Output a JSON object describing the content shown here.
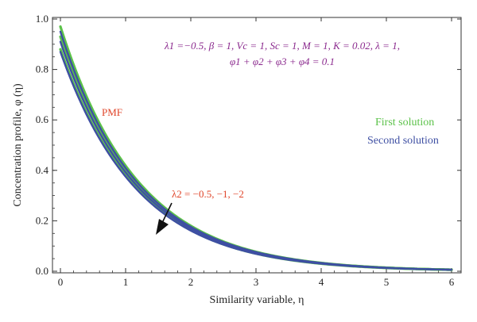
{
  "chart_data": {
    "type": "line",
    "xlabel": "Similarity variable, η",
    "ylabel": "Concentration profile, φ (η)",
    "xlim": [
      0,
      6
    ],
    "ylim": [
      0,
      1.0
    ],
    "x_ticks": [
      "0",
      "1",
      "2",
      "3",
      "4",
      "5",
      "6"
    ],
    "y_ticks": [
      "0.0",
      "0.2",
      "0.4",
      "0.6",
      "0.8",
      "1.0"
    ],
    "x_tick_values": [
      0,
      1,
      2,
      3,
      4,
      5,
      6
    ],
    "y_tick_values": [
      0,
      0.2,
      0.4,
      0.6,
      0.8,
      1.0
    ],
    "grid": false,
    "legend_placement": "right",
    "legend": [
      {
        "label": "First solution",
        "color": "#5cc24a"
      },
      {
        "label": "Second solution",
        "color": "#3e4fa3"
      }
    ],
    "annotations": {
      "params_line1": "λ1 =−0.5, β = 1, Vc = 1, Sc = 1, M = 1, K = 0.02, λ = 1,",
      "params_line2": "φ1 + φ2 + φ3 + φ4 = 0.1",
      "pmf": "PMF",
      "lambda2": "λ2 = −0.5, −1, −2"
    },
    "series": [
      {
        "group": "First solution",
        "color": "#5cc24a",
        "x": [
          0,
          1,
          2,
          3,
          4,
          5,
          6
        ],
        "y": [
          0.97,
          0.418,
          0.18,
          0.077,
          0.033,
          0.014,
          0.006
        ]
      },
      {
        "group": "First solution",
        "color": "#5cc24a",
        "x": [
          0,
          1,
          2,
          3,
          4,
          5,
          6
        ],
        "y": [
          0.93,
          0.401,
          0.173,
          0.074,
          0.032,
          0.014,
          0.006
        ]
      },
      {
        "group": "First solution",
        "color": "#5cc24a",
        "x": [
          0,
          1,
          2,
          3,
          4,
          5,
          6
        ],
        "y": [
          0.88,
          0.379,
          0.163,
          0.07,
          0.03,
          0.013,
          0.006
        ]
      },
      {
        "group": "Second solution",
        "color": "#3e4fa3",
        "x": [
          0,
          1,
          2,
          3,
          4,
          5,
          6
        ],
        "y": [
          0.95,
          0.409,
          0.176,
          0.076,
          0.033,
          0.014,
          0.006
        ]
      },
      {
        "group": "Second solution",
        "color": "#3e4fa3",
        "x": [
          0,
          1,
          2,
          3,
          4,
          5,
          6
        ],
        "y": [
          0.91,
          0.392,
          0.169,
          0.073,
          0.031,
          0.013,
          0.006
        ]
      },
      {
        "group": "Second solution",
        "color": "#3e4fa3",
        "x": [
          0,
          1,
          2,
          3,
          4,
          5,
          6
        ],
        "y": [
          0.87,
          0.375,
          0.161,
          0.069,
          0.03,
          0.013,
          0.006
        ]
      }
    ]
  }
}
